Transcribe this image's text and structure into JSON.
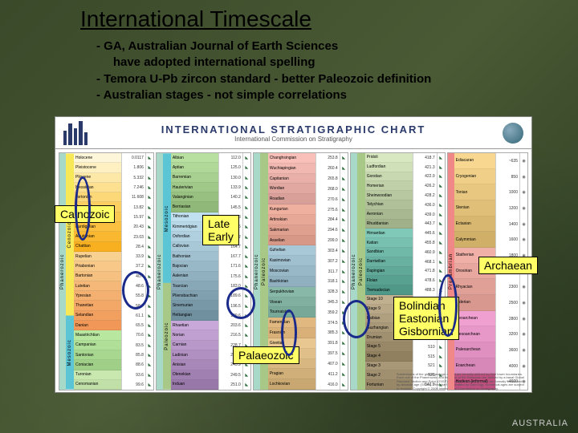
{
  "slide": {
    "title": "International Timescale",
    "bullets": [
      "- GA, Australian Journal of Earth Sciences",
      "     have adopted international spelling",
      "- Temora U-Pb zircon standard - better Paleozoic definition",
      "- Australian stages - not simple correlations"
    ],
    "brand": "AUSTRALIA"
  },
  "chart": {
    "header": {
      "title": "INTERNATIONAL STRATIGRAPHIC CHART",
      "subtitle": "International Commission on Stratigraphy",
      "left_logo": "ICS",
      "right_logo": "IUGS"
    },
    "panels": [
      {
        "eon": {
          "label": "Phanerozoic",
          "color": "#a8d8c8"
        },
        "eras": [
          {
            "label": "Cenozoic",
            "color": "#f7e858",
            "flex": 1
          },
          {
            "label": "Mesozoic",
            "color": "#5bc5d6",
            "flex": 0.45
          }
        ],
        "stages": [
          {
            "name": "Holocene",
            "bg": "#fef6d8"
          },
          {
            "name": "Pleistocene",
            "bg": "#fef0c0"
          },
          {
            "name": "Pliocene",
            "bg": "#fde8a8"
          },
          {
            "name": "Messinian",
            "bg": "#fde090"
          },
          {
            "name": "Tortonian",
            "bg": "#fcd878"
          },
          {
            "name": "Serravallian",
            "bg": "#fcd060"
          },
          {
            "name": "Langhian",
            "bg": "#fbc850"
          },
          {
            "name": "Burdigalian",
            "bg": "#fbc040"
          },
          {
            "name": "Aquitanian",
            "bg": "#fab830"
          },
          {
            "name": "Chattian",
            "bg": "#f9b020"
          },
          {
            "name": "Rupelian",
            "bg": "#f8d090"
          },
          {
            "name": "Priabonian",
            "bg": "#f7c888"
          },
          {
            "name": "Bartonian",
            "bg": "#f6c080"
          },
          {
            "name": "Lutetian",
            "bg": "#f5b878"
          },
          {
            "name": "Ypresian",
            "bg": "#f4b070"
          },
          {
            "name": "Thanetian",
            "bg": "#f3a868"
          },
          {
            "name": "Selandian",
            "bg": "#f2a060"
          },
          {
            "name": "Danian",
            "bg": "#f19858"
          },
          {
            "name": "Maastrichtian",
            "bg": "#b8e8a0"
          },
          {
            "name": "Campanian",
            "bg": "#b0e098"
          },
          {
            "name": "Santonian",
            "bg": "#a8d890"
          },
          {
            "name": "Coniacian",
            "bg": "#a0d088"
          },
          {
            "name": "Turonian",
            "bg": "#c8e8b0"
          },
          {
            "name": "Cenomanian",
            "bg": "#c0e0a8"
          }
        ],
        "ages": [
          "0.0117",
          "1.806",
          "5.332",
          "7.246",
          "11.608",
          "13.82",
          "15.97",
          "20.43",
          "23.03",
          "28.4",
          "33.9",
          "37.2",
          "40.4",
          "48.6",
          "55.8",
          "58.7",
          "61.1",
          "65.5",
          "70.6",
          "83.5",
          "85.8",
          "88.6",
          "93.6",
          "99.6"
        ]
      },
      {
        "eon": {
          "label": "Phanerozoic",
          "color": "#a8d8c8"
        },
        "eras": [
          {
            "label": "Mesozoic",
            "color": "#5bc5d6",
            "flex": 0.55
          },
          {
            "label": "Paleozoic",
            "color": "#a8c888",
            "flex": 0.45
          }
        ],
        "stages": [
          {
            "name": "Albian",
            "bg": "#b8e0a0"
          },
          {
            "name": "Aptian",
            "bg": "#b0d898"
          },
          {
            "name": "Barremian",
            "bg": "#a8d090"
          },
          {
            "name": "Hauterivian",
            "bg": "#a0c888"
          },
          {
            "name": "Valanginian",
            "bg": "#98c080"
          },
          {
            "name": "Berriasian",
            "bg": "#90b878"
          },
          {
            "name": "Tithonian",
            "bg": "#c0e0f0"
          },
          {
            "name": "Kimmeridgian",
            "bg": "#b8d8e8"
          },
          {
            "name": "Oxfordian",
            "bg": "#b0d0e0"
          },
          {
            "name": "Callovian",
            "bg": "#a8c8d8"
          },
          {
            "name": "Bathonian",
            "bg": "#a0c0d0"
          },
          {
            "name": "Bajocian",
            "bg": "#98b8c8"
          },
          {
            "name": "Aalenian",
            "bg": "#90b0c0"
          },
          {
            "name": "Toarcian",
            "bg": "#88a8b8"
          },
          {
            "name": "Pliensbachian",
            "bg": "#80a0b0"
          },
          {
            "name": "Sinemurian",
            "bg": "#7898a8"
          },
          {
            "name": "Hettangian",
            "bg": "#7090a0"
          },
          {
            "name": "Rhaetian",
            "bg": "#c8a8d8"
          },
          {
            "name": "Norian",
            "bg": "#c0a0d0"
          },
          {
            "name": "Carnian",
            "bg": "#b898c8"
          },
          {
            "name": "Ladinian",
            "bg": "#b090c0"
          },
          {
            "name": "Anisian",
            "bg": "#a888b8"
          },
          {
            "name": "Olenekian",
            "bg": "#a080b0"
          },
          {
            "name": "Induan",
            "bg": "#9878a8"
          }
        ],
        "ages": [
          "112.0",
          "125.0",
          "130.0",
          "133.9",
          "140.2",
          "145.5",
          "150.8",
          "155.6",
          "161.2",
          "164.7",
          "167.7",
          "171.6",
          "175.6",
          "183.0",
          "189.6",
          "196.5",
          "199.6",
          "203.6",
          "216.5",
          "228.7",
          "237.0",
          "245.9",
          "249.5",
          "251.0"
        ]
      },
      {
        "eon": {
          "label": "Phanerozoic",
          "color": "#a8d8c8"
        },
        "eras": [
          {
            "label": "Paleozoic",
            "color": "#a8c888",
            "flex": 1
          }
        ],
        "stages": [
          {
            "name": "Changhsingian",
            "bg": "#f8c0b8"
          },
          {
            "name": "Wuchiapingian",
            "bg": "#f0b8b0"
          },
          {
            "name": "Capitanian",
            "bg": "#e8b0a8"
          },
          {
            "name": "Wordian",
            "bg": "#e0a8a0"
          },
          {
            "name": "Roadian",
            "bg": "#d8a098"
          },
          {
            "name": "Kungurian",
            "bg": "#f0b0a0"
          },
          {
            "name": "Artinskian",
            "bg": "#e8a898"
          },
          {
            "name": "Sakmarian",
            "bg": "#e0a090"
          },
          {
            "name": "Asselian",
            "bg": "#d89888"
          },
          {
            "name": "Gzhelian",
            "bg": "#a8c8d8"
          },
          {
            "name": "Kasimovian",
            "bg": "#a0c0d0"
          },
          {
            "name": "Moscovian",
            "bg": "#98b8c8"
          },
          {
            "name": "Bashkirian",
            "bg": "#90b0c0"
          },
          {
            "name": "Serpukhovian",
            "bg": "#88b8a8"
          },
          {
            "name": "Visean",
            "bg": "#80b0a0"
          },
          {
            "name": "Tournaisian",
            "bg": "#78a898"
          },
          {
            "name": "Famennian",
            "bg": "#e0b880"
          },
          {
            "name": "Frasnian",
            "bg": "#d8b078"
          },
          {
            "name": "Givetian",
            "bg": "#e8c890"
          },
          {
            "name": "Eifelian",
            "bg": "#e0c088"
          },
          {
            "name": "Emsian",
            "bg": "#d8b880"
          },
          {
            "name": "Pragian",
            "bg": "#d0b078"
          },
          {
            "name": "Lochkovian",
            "bg": "#c8a870"
          }
        ],
        "ages": [
          "253.8",
          "260.4",
          "265.8",
          "268.0",
          "270.6",
          "275.6",
          "284.4",
          "294.6",
          "299.0",
          "303.4",
          "307.2",
          "311.7",
          "318.1",
          "328.3",
          "345.3",
          "359.2",
          "374.5",
          "385.3",
          "391.8",
          "397.5",
          "407.0",
          "411.2",
          "416.0"
        ]
      },
      {
        "eon": {
          "label": "Phanerozoic",
          "color": "#a8d8c8"
        },
        "eras": [
          {
            "label": "Paleozoic",
            "color": "#a8c888",
            "flex": 1
          }
        ],
        "stages": [
          {
            "name": "Pridoli",
            "bg": "#d8e8c0"
          },
          {
            "name": "Ludfordian",
            "bg": "#d0e0b8"
          },
          {
            "name": "Gorstian",
            "bg": "#c8d8b0"
          },
          {
            "name": "Homerian",
            "bg": "#c0d0a8"
          },
          {
            "name": "Sheinwoodian",
            "bg": "#b8c8a0"
          },
          {
            "name": "Telychian",
            "bg": "#b0c098"
          },
          {
            "name": "Aeronian",
            "bg": "#a8b890"
          },
          {
            "name": "Rhuddanian",
            "bg": "#a0b088"
          },
          {
            "name": "Hirnantian",
            "bg": "#80c8b8"
          },
          {
            "name": "Katian",
            "bg": "#78c0b0"
          },
          {
            "name": "Sandbian",
            "bg": "#70b8a8"
          },
          {
            "name": "Darriwilian",
            "bg": "#68b0a0"
          },
          {
            "name": "Dapingian",
            "bg": "#60a898"
          },
          {
            "name": "Floian",
            "bg": "#58a090"
          },
          {
            "name": "Tremadocian",
            "bg": "#509888"
          },
          {
            "name": "Stage 10",
            "bg": "#c0b090"
          },
          {
            "name": "Stage 9",
            "bg": "#b8a888"
          },
          {
            "name": "Paibian",
            "bg": "#b0a080"
          },
          {
            "name": "Guzhangian",
            "bg": "#a89878"
          },
          {
            "name": "Drumian",
            "bg": "#a09070"
          },
          {
            "name": "Stage 5",
            "bg": "#988868"
          },
          {
            "name": "Stage 4",
            "bg": "#908060"
          },
          {
            "name": "Stage 3",
            "bg": "#a89878"
          },
          {
            "name": "Stage 2",
            "bg": "#a09070"
          },
          {
            "name": "Fortunian",
            "bg": "#988868"
          }
        ],
        "ages": [
          "418.7",
          "421.3",
          "422.9",
          "426.2",
          "428.2",
          "436.0",
          "439.0",
          "443.7",
          "445.6",
          "455.8",
          "460.9",
          "468.1",
          "471.8",
          "478.6",
          "488.3",
          "492",
          "496",
          "499",
          "503",
          "506.5",
          "510",
          "515",
          "521",
          "528",
          "542.0"
        ]
      }
    ],
    "precambrian": {
      "eon": {
        "label": "Precambrian",
        "color": "#f08888"
      },
      "divisions": [
        {
          "name": "Ediacaran",
          "bg": "#f8d890",
          "age": "~635"
        },
        {
          "name": "Cryogenian",
          "bg": "#f0d088",
          "age": "850"
        },
        {
          "name": "Tonian",
          "bg": "#e8c880",
          "age": "1000"
        },
        {
          "name": "Stenian",
          "bg": "#e0c078",
          "age": "1200"
        },
        {
          "name": "Ectasian",
          "bg": "#d8b870",
          "age": "1400"
        },
        {
          "name": "Calymmian",
          "bg": "#d0b068",
          "age": "1600"
        },
        {
          "name": "Statherian",
          "bg": "#f0b0a8",
          "age": "1800"
        },
        {
          "name": "Orosirian",
          "bg": "#e8a8a0",
          "age": "2050"
        },
        {
          "name": "Rhyacian",
          "bg": "#e0a098",
          "age": "2300"
        },
        {
          "name": "Siderian",
          "bg": "#d89890",
          "age": "2500"
        },
        {
          "name": "Neoarchean",
          "bg": "#f0a0d0",
          "age": "2800"
        },
        {
          "name": "Mesoarchean",
          "bg": "#e898c8",
          "age": "3200"
        },
        {
          "name": "Paleoarchean",
          "bg": "#e090c0",
          "age": "3600"
        },
        {
          "name": "Eoarchean",
          "bg": "#d888b8",
          "age": "4000"
        },
        {
          "name": "Hadean (informal)",
          "bg": "#c05080",
          "age": "~4600"
        }
      ]
    }
  },
  "callouts": {
    "cainozoic": "Cainozoic",
    "late_early": "Late\nEarly",
    "archaean": "Archaean",
    "ordovician_stages": "Bolindian\nEastonian\nGisbornian",
    "palaeozoic": "Palaeozoic"
  },
  "style": {
    "callout_bg": "#ffff66",
    "ellipse_color": "#1a2a8a"
  }
}
